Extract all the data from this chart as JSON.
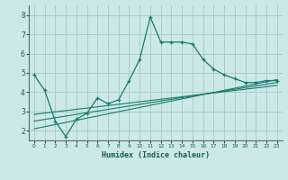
{
  "xlabel": "Humidex (Indice chaleur)",
  "background_color": "#cce8e8",
  "grid_color": "#a8cccc",
  "line_color": "#1a7a6e",
  "xlim": [
    -0.5,
    23.5
  ],
  "ylim": [
    1.5,
    8.5
  ],
  "xticks": [
    0,
    1,
    2,
    3,
    4,
    5,
    6,
    7,
    8,
    9,
    10,
    11,
    12,
    13,
    14,
    15,
    16,
    17,
    18,
    19,
    20,
    21,
    22,
    23
  ],
  "yticks": [
    2,
    3,
    4,
    5,
    6,
    7,
    8
  ],
  "curve1_x": [
    0,
    1,
    2,
    3,
    4,
    5,
    6,
    7,
    8,
    9,
    10,
    11,
    12,
    13,
    14,
    15,
    16,
    17,
    18,
    19,
    20,
    21,
    22,
    23
  ],
  "curve1_y": [
    4.9,
    4.1,
    2.5,
    1.7,
    2.6,
    2.9,
    3.7,
    3.4,
    3.6,
    4.6,
    5.7,
    7.9,
    6.6,
    6.6,
    6.6,
    6.5,
    5.7,
    5.2,
    4.9,
    4.7,
    4.5,
    4.5,
    4.6,
    4.6
  ],
  "line2_x": [
    0,
    23
  ],
  "line2_y": [
    2.1,
    4.65
  ],
  "line3_x": [
    0,
    23
  ],
  "line3_y": [
    2.5,
    4.5
  ],
  "line4_x": [
    0,
    23
  ],
  "line4_y": [
    2.85,
    4.35
  ]
}
